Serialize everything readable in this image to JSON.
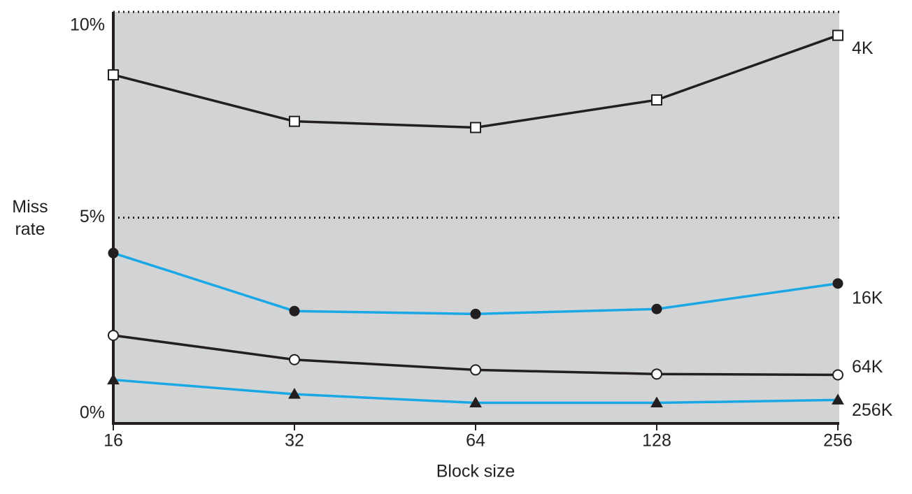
{
  "chart_data": {
    "type": "line",
    "x_label": "Block size",
    "y_label": "Miss rate",
    "categories": [
      "16",
      "32",
      "64",
      "128",
      "256"
    ],
    "series": [
      {
        "name": "4K",
        "color": "#231f20",
        "marker": "open-square",
        "values": [
          8.47,
          7.34,
          7.19,
          7.86,
          9.43
        ]
      },
      {
        "name": "16K",
        "color": "#1aa7e6",
        "marker": "filled-circle",
        "values": [
          4.14,
          2.73,
          2.66,
          2.78,
          3.4
        ]
      },
      {
        "name": "64K",
        "color": "#231f20",
        "marker": "open-circle",
        "values": [
          2.14,
          1.55,
          1.3,
          1.2,
          1.18
        ]
      },
      {
        "name": "256K",
        "color": "#1aa7e6",
        "marker": "filled-triangle",
        "values": [
          1.06,
          0.71,
          0.5,
          0.5,
          0.57
        ]
      }
    ],
    "ylim": [
      0,
      10
    ],
    "yticks": [
      {
        "value": 0,
        "label": "0%"
      },
      {
        "value": 5,
        "label": "5%"
      },
      {
        "value": 10,
        "label": "10%"
      }
    ],
    "grid": true,
    "plot_background": "#d1d3d4"
  }
}
